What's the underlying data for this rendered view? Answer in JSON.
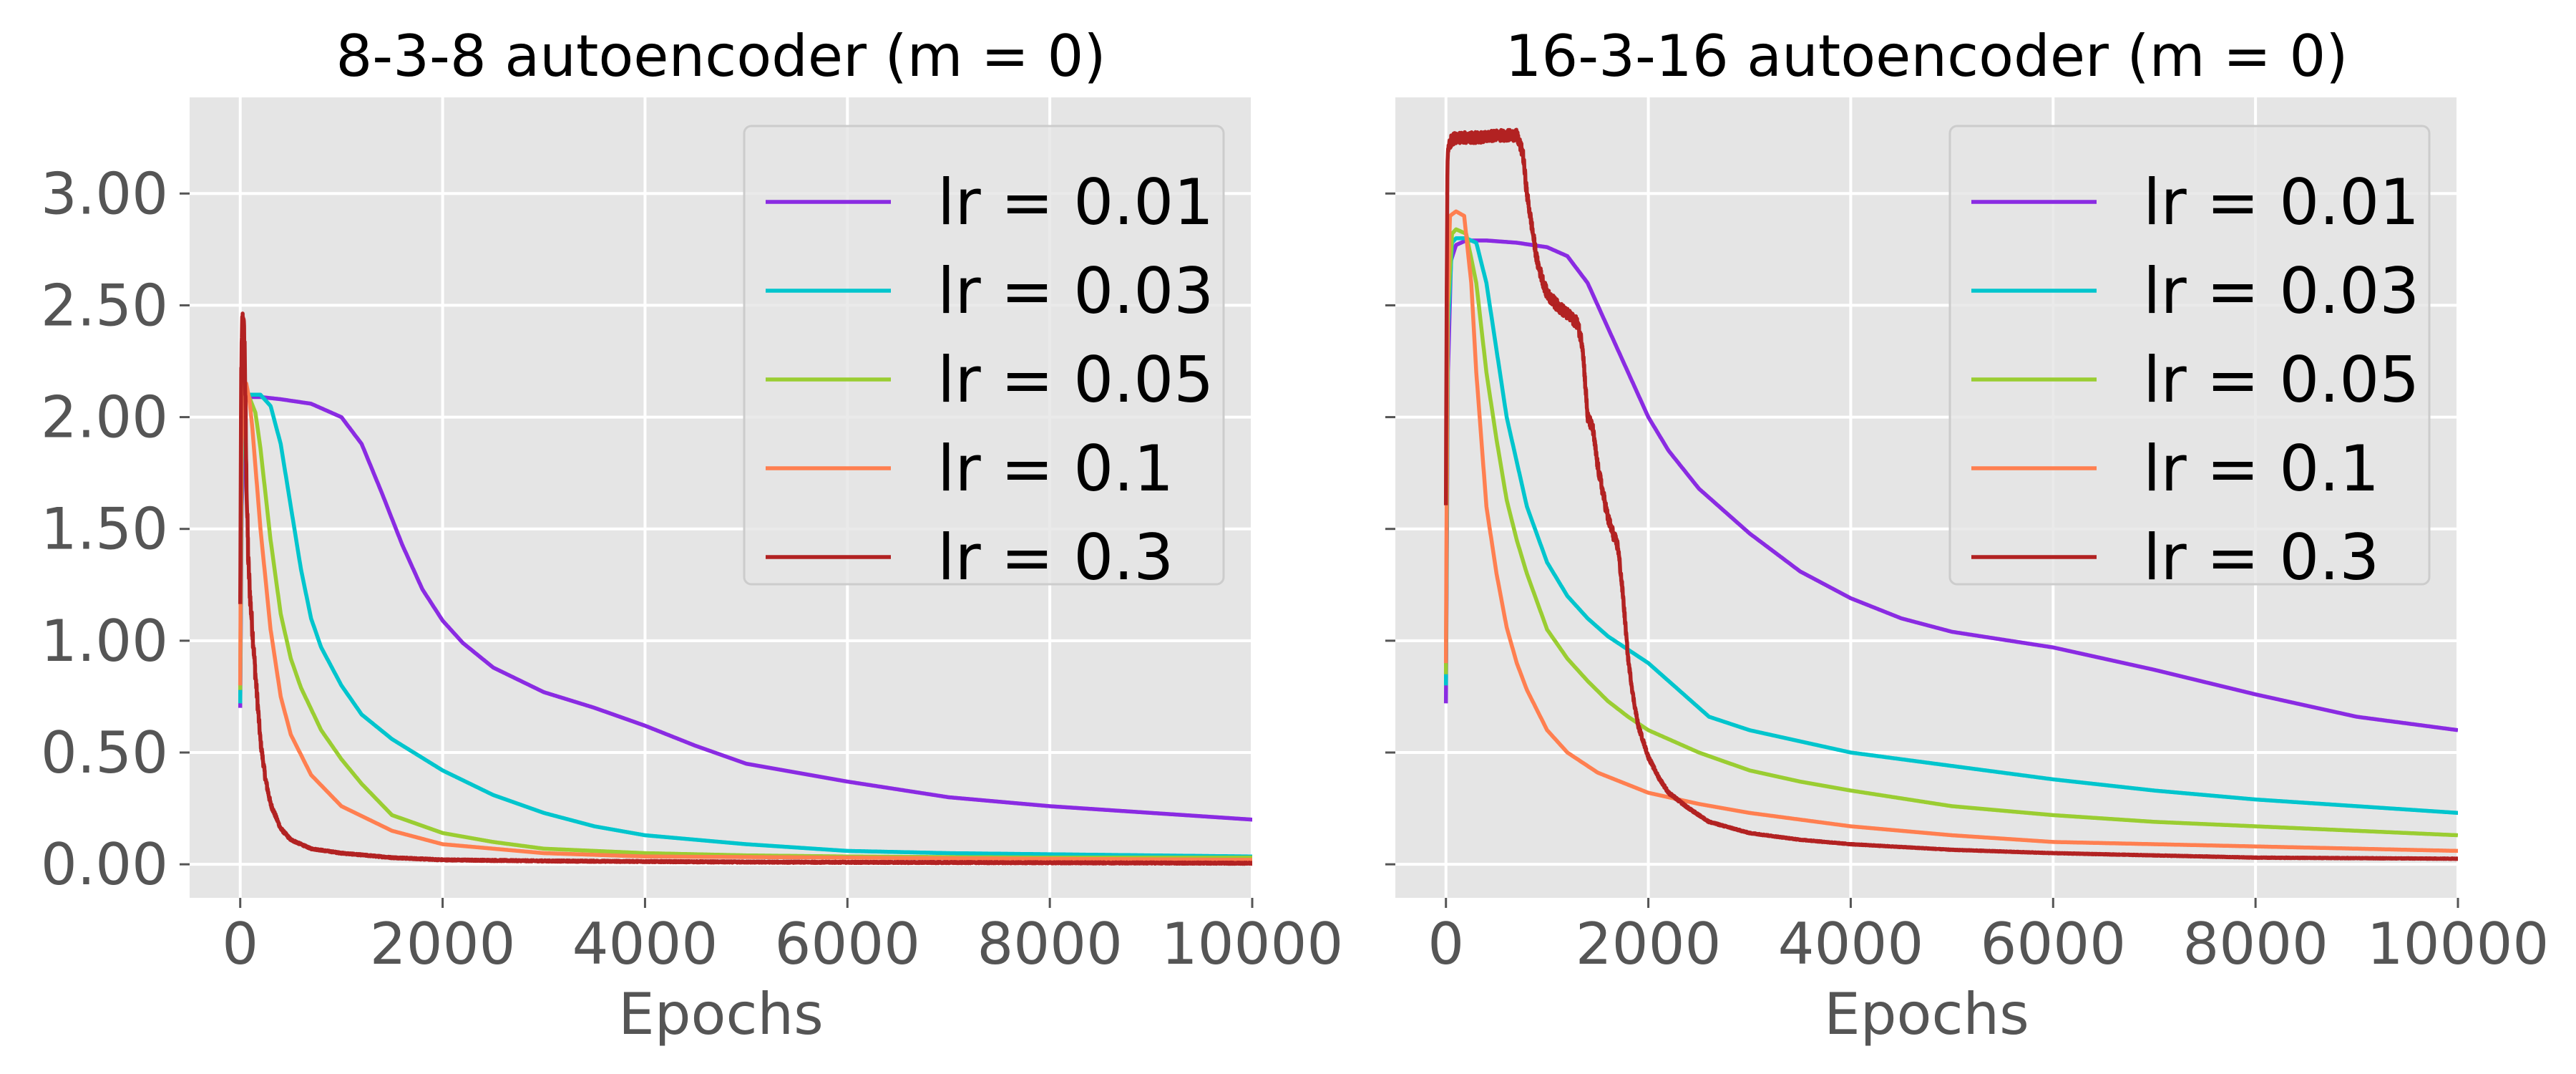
{
  "colors": {
    "panel_bg": "#e5e5e5",
    "grid": "#ffffff",
    "tick_text": "#555555"
  },
  "chart_data": [
    {
      "type": "line",
      "title": "8-3-8 autoencoder (m = 0)",
      "xlabel": "Epochs",
      "ylabel": "",
      "xlim": [
        -500,
        10000
      ],
      "ylim": [
        -0.15,
        3.43
      ],
      "xticks": [
        0,
        2000,
        4000,
        6000,
        8000,
        10000
      ],
      "xtick_labels": [
        "0",
        "2000",
        "4000",
        "6000",
        "8000",
        "10000"
      ],
      "yticks": [
        0,
        0.5,
        1,
        1.5,
        2,
        2.5,
        3
      ],
      "ytick_labels": [
        "0.00",
        "0.50",
        "1.00",
        "1.50",
        "2.00",
        "2.50",
        "3.00"
      ],
      "grid": true,
      "legend_position": "top-right",
      "series": [
        {
          "name": "lr = 0.01",
          "color": "#8a2be2",
          "noise": 0,
          "x": [
            0,
            15,
            50,
            80,
            120,
            200,
            400,
            700,
            1000,
            1200,
            1400,
            1600,
            1800,
            2000,
            2200,
            2500,
            3000,
            3500,
            4000,
            4500,
            5000,
            6000,
            7000,
            8000,
            9000,
            10000
          ],
          "y": [
            0.7,
            1.6,
            2.07,
            2.09,
            2.09,
            2.09,
            2.08,
            2.06,
            2.0,
            1.88,
            1.66,
            1.43,
            1.23,
            1.09,
            0.99,
            0.88,
            0.77,
            0.7,
            0.62,
            0.53,
            0.45,
            0.37,
            0.3,
            0.26,
            0.23,
            0.2
          ]
        },
        {
          "name": "lr = 0.03",
          "color": "#00c5cd",
          "noise": 0,
          "x": [
            0,
            15,
            40,
            100,
            200,
            300,
            400,
            500,
            600,
            700,
            800,
            1000,
            1200,
            1500,
            2000,
            2500,
            3000,
            3500,
            4000,
            5000,
            6000,
            7000,
            8000,
            9000,
            10000
          ],
          "y": [
            0.72,
            1.8,
            2.1,
            2.1,
            2.1,
            2.05,
            1.88,
            1.6,
            1.32,
            1.1,
            0.97,
            0.8,
            0.67,
            0.56,
            0.42,
            0.31,
            0.23,
            0.17,
            0.13,
            0.09,
            0.06,
            0.05,
            0.045,
            0.04,
            0.035
          ]
        },
        {
          "name": "lr = 0.05",
          "color": "#9acd32",
          "noise": 0,
          "x": [
            0,
            15,
            40,
            80,
            150,
            200,
            300,
            400,
            500,
            600,
            800,
            1000,
            1200,
            1500,
            2000,
            2500,
            3000,
            4000,
            5000,
            6000,
            8000,
            10000
          ],
          "y": [
            0.78,
            1.9,
            2.12,
            2.1,
            2.02,
            1.86,
            1.45,
            1.12,
            0.92,
            0.79,
            0.6,
            0.47,
            0.36,
            0.22,
            0.14,
            0.1,
            0.07,
            0.05,
            0.04,
            0.035,
            0.03,
            0.03
          ]
        },
        {
          "name": "lr = 0.1",
          "color": "#ff7f50",
          "noise": 0,
          "x": [
            0,
            10,
            30,
            60,
            90,
            120,
            200,
            300,
            400,
            500,
            700,
            1000,
            1500,
            2000,
            3000,
            4000,
            6000,
            8000,
            10000
          ],
          "y": [
            0.8,
            1.8,
            2.15,
            2.15,
            2.08,
            1.95,
            1.5,
            1.05,
            0.75,
            0.58,
            0.4,
            0.26,
            0.15,
            0.09,
            0.05,
            0.035,
            0.03,
            0.025,
            0.02
          ]
        },
        {
          "name": "lr = 0.3",
          "color": "#b22222",
          "noise": 0.06,
          "x": [
            0,
            10,
            20,
            30,
            45,
            60,
            80,
            100,
            120,
            150,
            200,
            250,
            300,
            400,
            500,
            700,
            1000,
            1500,
            2000,
            3000,
            5000,
            10000
          ],
          "y": [
            1.15,
            2.2,
            2.42,
            2.44,
            2.3,
            1.75,
            1.35,
            1.18,
            1.05,
            0.85,
            0.55,
            0.38,
            0.27,
            0.16,
            0.11,
            0.07,
            0.05,
            0.03,
            0.02,
            0.015,
            0.01,
            0.005
          ]
        }
      ]
    },
    {
      "type": "line",
      "title": "16-3-16 autoencoder (m = 0)",
      "xlabel": "Epochs",
      "ylabel": "",
      "xlim": [
        -500,
        10000
      ],
      "ylim": [
        -0.15,
        3.43
      ],
      "xticks": [
        0,
        2000,
        4000,
        6000,
        8000,
        10000
      ],
      "xtick_labels": [
        "0",
        "2000",
        "4000",
        "6000",
        "8000",
        "10000"
      ],
      "yticks": [
        0,
        0.5,
        1,
        1.5,
        2,
        2.5,
        3
      ],
      "ytick_labels": [
        "",
        "",
        "",
        "",
        "",
        "",
        ""
      ],
      "grid": true,
      "legend_position": "top-right",
      "series": [
        {
          "name": "lr = 0.01",
          "color": "#8a2be2",
          "noise": 0,
          "x": [
            0,
            20,
            50,
            100,
            200,
            400,
            700,
            1000,
            1200,
            1400,
            1600,
            1800,
            2000,
            2200,
            2500,
            3000,
            3500,
            4000,
            4500,
            5000,
            6000,
            7000,
            8000,
            9000,
            10000
          ],
          "y": [
            0.72,
            2.2,
            2.7,
            2.77,
            2.79,
            2.79,
            2.78,
            2.76,
            2.72,
            2.6,
            2.4,
            2.2,
            2.0,
            1.85,
            1.68,
            1.48,
            1.31,
            1.19,
            1.1,
            1.04,
            0.97,
            0.87,
            0.76,
            0.66,
            0.6
          ]
        },
        {
          "name": "lr = 0.03",
          "color": "#00c5cd",
          "noise": 0,
          "x": [
            0,
            20,
            60,
            100,
            200,
            300,
            400,
            500,
            600,
            700,
            800,
            1000,
            1200,
            1400,
            1600,
            1800,
            2000,
            2300,
            2600,
            3000,
            3500,
            4000,
            5000,
            6000,
            7000,
            8000,
            9000,
            10000
          ],
          "y": [
            0.8,
            2.4,
            2.78,
            2.8,
            2.8,
            2.78,
            2.6,
            2.3,
            2.0,
            1.8,
            1.6,
            1.35,
            1.2,
            1.1,
            1.02,
            0.96,
            0.9,
            0.78,
            0.66,
            0.6,
            0.55,
            0.5,
            0.44,
            0.38,
            0.33,
            0.29,
            0.26,
            0.23
          ]
        },
        {
          "name": "lr = 0.05",
          "color": "#9acd32",
          "noise": 0,
          "x": [
            0,
            20,
            60,
            100,
            200,
            300,
            400,
            500,
            600,
            700,
            800,
            1000,
            1200,
            1400,
            1600,
            1800,
            2000,
            2500,
            3000,
            3500,
            4000,
            5000,
            6000,
            7000,
            8000,
            9000,
            10000
          ],
          "y": [
            0.85,
            2.5,
            2.82,
            2.84,
            2.82,
            2.6,
            2.2,
            1.9,
            1.63,
            1.45,
            1.3,
            1.05,
            0.92,
            0.82,
            0.73,
            0.66,
            0.6,
            0.5,
            0.42,
            0.37,
            0.33,
            0.26,
            0.22,
            0.19,
            0.17,
            0.15,
            0.13
          ]
        },
        {
          "name": "lr = 0.1",
          "color": "#ff7f50",
          "noise": 0,
          "x": [
            0,
            15,
            40,
            100,
            180,
            250,
            300,
            350,
            400,
            500,
            600,
            700,
            800,
            1000,
            1200,
            1500,
            2000,
            2500,
            3000,
            4000,
            5000,
            6000,
            7000,
            8000,
            9000,
            10000
          ],
          "y": [
            0.9,
            2.5,
            2.9,
            2.92,
            2.9,
            2.6,
            2.2,
            1.9,
            1.6,
            1.3,
            1.06,
            0.9,
            0.78,
            0.6,
            0.5,
            0.41,
            0.32,
            0.27,
            0.23,
            0.17,
            0.13,
            0.1,
            0.09,
            0.08,
            0.07,
            0.06
          ]
        },
        {
          "name": "lr = 0.3",
          "color": "#b22222",
          "noise": 0.025,
          "x": [
            0,
            5,
            15,
            30,
            60,
            100,
            300,
            500,
            700,
            760,
            800,
            850,
            900,
            950,
            1000,
            1100,
            1200,
            1300,
            1350,
            1400,
            1450,
            1500,
            1600,
            1650,
            1700,
            1750,
            1800,
            1850,
            1900,
            2000,
            2100,
            2200,
            2400,
            2600,
            3000,
            3500,
            4000,
            5000,
            6000,
            7000,
            8000,
            10000
          ],
          "y": [
            1.62,
            2.3,
            3.15,
            3.22,
            3.24,
            3.25,
            3.25,
            3.26,
            3.26,
            3.18,
            3.0,
            2.85,
            2.7,
            2.62,
            2.55,
            2.5,
            2.46,
            2.42,
            2.32,
            2.0,
            1.95,
            1.78,
            1.55,
            1.48,
            1.42,
            1.2,
            0.92,
            0.75,
            0.62,
            0.48,
            0.39,
            0.32,
            0.25,
            0.19,
            0.14,
            0.11,
            0.09,
            0.065,
            0.05,
            0.04,
            0.03,
            0.025
          ]
        }
      ]
    }
  ]
}
